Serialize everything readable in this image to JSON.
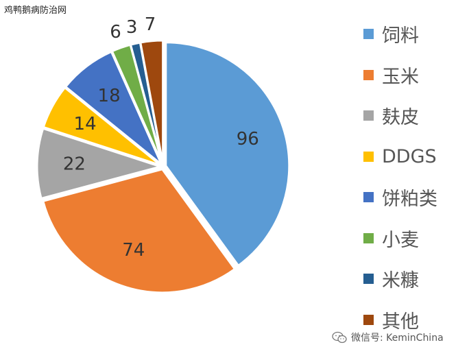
{
  "watermark": "鸡鸭鹅病防治网",
  "credit": "微信号: KeminChina",
  "icons": {
    "credit": "wechat-icon"
  },
  "chart_data": {
    "type": "pie",
    "title": "",
    "legend_position": "right",
    "slices": [
      {
        "label": "饲料",
        "value": 96,
        "color": "#5B9BD5"
      },
      {
        "label": "玉米",
        "value": 74,
        "color": "#ED7D31"
      },
      {
        "label": "麸皮",
        "value": 22,
        "color": "#A5A5A5"
      },
      {
        "label": "DDGS",
        "value": 14,
        "color": "#FFC000"
      },
      {
        "label": "饼粕类",
        "value": 18,
        "color": "#4472C4"
      },
      {
        "label": "小麦",
        "value": 6,
        "color": "#70AD47"
      },
      {
        "label": "米糠",
        "value": 3,
        "color": "#255E91"
      },
      {
        "label": "其他",
        "value": 7,
        "color": "#9E480E"
      }
    ]
  }
}
